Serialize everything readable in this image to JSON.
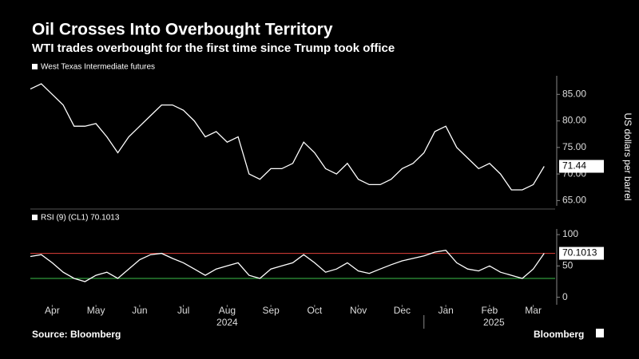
{
  "title": "Oil Crosses Into Overbought Territory",
  "subtitle": "WTI trades overbought for the first time since Trump took office",
  "source": "Source: Bloomberg",
  "brand": "Bloomberg",
  "chart_data": [
    {
      "type": "line",
      "y_label": "US dollars per barrel",
      "xlim": [
        0,
        12
      ],
      "ylim": [
        64,
        88.5
      ],
      "yticks": [
        {
          "value": 65,
          "label": "65.00"
        },
        {
          "value": 70,
          "label": "70.00"
        },
        {
          "value": 75,
          "label": "75.00"
        },
        {
          "value": 80,
          "label": "80.00"
        },
        {
          "value": 85,
          "label": "85.00"
        }
      ],
      "series": [
        {
          "name": "West Texas Intermediate futures",
          "color": "#ffffff",
          "x": [
            0,
            0.25,
            0.5,
            0.75,
            1,
            1.25,
            1.5,
            1.75,
            2,
            2.25,
            2.5,
            2.75,
            3,
            3.25,
            3.5,
            3.75,
            4,
            4.25,
            4.5,
            4.75,
            5,
            5.25,
            5.5,
            5.75,
            6,
            6.25,
            6.5,
            6.75,
            7,
            7.25,
            7.5,
            7.75,
            8,
            8.25,
            8.5,
            8.75,
            9,
            9.25,
            9.5,
            9.75,
            10,
            10.25,
            10.5,
            10.75,
            11,
            11.25,
            11.5,
            11.75
          ],
          "values": [
            86,
            87,
            85,
            83,
            79,
            79,
            79.5,
            77,
            74,
            77,
            79,
            81,
            83,
            83,
            82,
            80,
            77,
            78,
            76,
            77,
            70,
            69,
            71,
            71,
            72,
            76,
            74,
            71,
            70,
            72,
            69,
            68,
            68,
            69,
            71,
            72,
            74,
            78,
            79,
            75,
            73,
            71,
            72,
            70,
            67,
            67,
            68,
            71.44
          ]
        }
      ]
    },
    {
      "type": "line",
      "xlim": [
        0,
        12
      ],
      "ylim": [
        -12,
        109
      ],
      "yticks": [
        0,
        50,
        100
      ],
      "xticks": [
        {
          "value": 0.5,
          "label": "Apr"
        },
        {
          "value": 1.5,
          "label": "May"
        },
        {
          "value": 2.5,
          "label": "Jun"
        },
        {
          "value": 3.5,
          "label": "Jul"
        },
        {
          "value": 4.5,
          "label": "Aug"
        },
        {
          "value": 5.5,
          "label": "Sep"
        },
        {
          "value": 6.5,
          "label": "Oct"
        },
        {
          "value": 7.5,
          "label": "Nov"
        },
        {
          "value": 8.5,
          "label": "Dec"
        },
        {
          "value": 9.5,
          "label": "Jan"
        },
        {
          "value": 10.5,
          "label": "Feb"
        },
        {
          "value": 11.5,
          "label": "Mar"
        }
      ],
      "year_labels": [
        {
          "value": 4.5,
          "label": "2024"
        },
        {
          "value": 10.6,
          "label": "2025"
        }
      ],
      "year_divider": 9,
      "hlines": [
        {
          "value": 70,
          "color": "#e0403a"
        },
        {
          "value": 30,
          "color": "#3bbf4a"
        }
      ],
      "series": [
        {
          "name": "RSI (9) (CL1) 70.1013",
          "color": "#ffffff",
          "x": [
            0,
            0.25,
            0.5,
            0.75,
            1,
            1.25,
            1.5,
            1.75,
            2,
            2.25,
            2.5,
            2.75,
            3,
            3.25,
            3.5,
            3.75,
            4,
            4.25,
            4.5,
            4.75,
            5,
            5.25,
            5.5,
            5.75,
            6,
            6.25,
            6.5,
            6.75,
            7,
            7.25,
            7.5,
            7.75,
            8,
            8.25,
            8.5,
            8.75,
            9,
            9.25,
            9.5,
            9.75,
            10,
            10.25,
            10.5,
            10.75,
            11,
            11.25,
            11.5,
            11.75
          ],
          "values": [
            65,
            68,
            55,
            40,
            30,
            25,
            35,
            40,
            30,
            45,
            60,
            68,
            70,
            62,
            55,
            45,
            35,
            45,
            50,
            55,
            35,
            30,
            45,
            50,
            55,
            68,
            55,
            40,
            45,
            55,
            42,
            38,
            45,
            52,
            58,
            62,
            66,
            72,
            75,
            55,
            45,
            42,
            50,
            40,
            35,
            30,
            45,
            70.1013
          ]
        }
      ]
    }
  ]
}
